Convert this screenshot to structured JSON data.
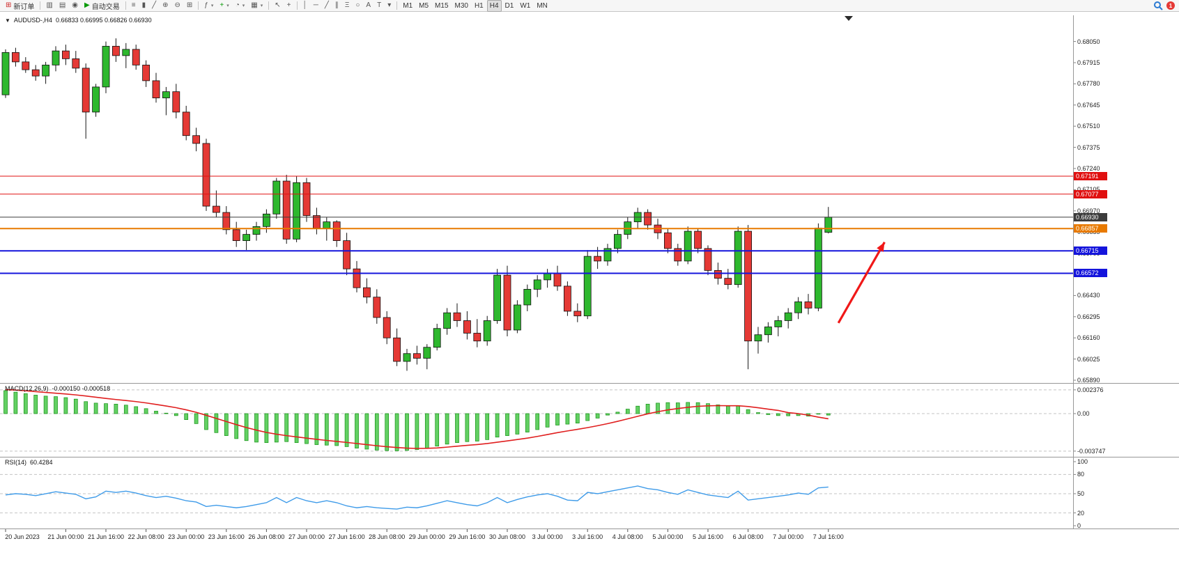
{
  "toolbar": {
    "new_order_label": "新订单",
    "auto_trading_label": "自动交易",
    "timeframes": [
      "M1",
      "M5",
      "M15",
      "M30",
      "H1",
      "H4",
      "D1",
      "W1",
      "MN"
    ],
    "active_timeframe": "H4",
    "notification_count": "1",
    "icons": {
      "new_order": "⊞",
      "new_chart": "▥",
      "profiles": "▤",
      "sound": "◉",
      "auto_play": "▶",
      "bars": "≡",
      "candles": "▮",
      "line_chart": "╱",
      "zoom_in": "⊕",
      "zoom_out": "⊖",
      "tile_windows": "⊞",
      "indicators": "ƒ",
      "add_indicator": "+",
      "period": "◔",
      "templates": "▦",
      "cursor": "↖",
      "crosshair": "+",
      "vertical_line": "│",
      "horizontal_line": "─",
      "trendline": "╱",
      "channel": "∥",
      "fibonacci": "Ξ",
      "shapes": "○",
      "text": "A",
      "text_label": "T",
      "arrows_dropdown": "▾"
    }
  },
  "chart": {
    "title": "AUDUSD-,H4",
    "ohlc_text": "0.66833 0.66995 0.66826 0.66930",
    "collapse_icon": "▼"
  },
  "indicators": {
    "macd": {
      "name": "MACD(12,26,9)",
      "values": "-0.000150 -0.000518"
    },
    "rsi": {
      "name": "RSI(14)",
      "value": "60.4284"
    }
  },
  "chart_data": {
    "type": "candlestick",
    "symbol": "AUDUSD-",
    "timeframe": "H4",
    "last_ohlc": {
      "open": 0.66833,
      "high": 0.66995,
      "low": 0.66826,
      "close": 0.6693
    },
    "price_range_visible": [
      0.65877,
      0.68217
    ],
    "colors": {
      "bull": "#2eb82e",
      "bear": "#e53935",
      "wick": "#151515",
      "macd_hist": "#63d063",
      "macd_hist_edge": "#149114",
      "macd_signal": "#e01f1f",
      "rsi_line": "#3e9be9"
    },
    "price_gridlines": [
      "0.68050",
      "0.67915",
      "0.67780",
      "0.67645",
      "0.67510",
      "0.67375",
      "0.67240",
      "0.67105",
      "0.66970",
      "0.66835",
      "0.66700",
      "0.66565",
      "0.66430",
      "0.66295",
      "0.66160",
      "0.66025",
      "0.65890"
    ],
    "horizontal_lines": [
      {
        "price": 0.67191,
        "label": "0.67191",
        "color": "#e01010",
        "width": 1
      },
      {
        "price": 0.67077,
        "label": "0.67077",
        "color": "#e01010",
        "width": 1
      },
      {
        "price": 0.6693,
        "label": "0.66930",
        "color": "#3c3c3c",
        "width": 1
      },
      {
        "price": 0.66857,
        "label": "0.66857",
        "color": "#e87a00",
        "width": 2
      },
      {
        "price": 0.66715,
        "label": "0.66715",
        "color": "#1414dc",
        "width": 2
      },
      {
        "price": 0.66572,
        "label": "0.66572",
        "color": "#1414dc",
        "width": 2
      }
    ],
    "time_labels": [
      {
        "label": "20 Jun 2023",
        "index": 0
      },
      {
        "label": "21 Jun 00:00",
        "index": 6
      },
      {
        "label": "21 Jun 16:00",
        "index": 10
      },
      {
        "label": "22 Jun 08:00",
        "index": 14
      },
      {
        "label": "23 Jun 00:00",
        "index": 18
      },
      {
        "label": "23 Jun 16:00",
        "index": 22
      },
      {
        "label": "26 Jun 08:00",
        "index": 26
      },
      {
        "label": "27 Jun 00:00",
        "index": 30
      },
      {
        "label": "27 Jun 16:00",
        "index": 34
      },
      {
        "label": "28 Jun 08:00",
        "index": 38
      },
      {
        "label": "29 Jun 00:00",
        "index": 42
      },
      {
        "label": "29 Jun 16:00",
        "index": 46
      },
      {
        "label": "30 Jun 08:00",
        "index": 50
      },
      {
        "label": "3 Jul 00:00",
        "index": 54
      },
      {
        "label": "3 Jul 16:00",
        "index": 58
      },
      {
        "label": "4 Jul 08:00",
        "index": 62
      },
      {
        "label": "5 Jul 00:00",
        "index": 66
      },
      {
        "label": "5 Jul 16:00",
        "index": 70
      },
      {
        "label": "6 Jul 08:00",
        "index": 74
      },
      {
        "label": "7 Jul 00:00",
        "index": 78
      },
      {
        "label": "7 Jul 16:00",
        "index": 82
      }
    ],
    "candles": [
      [
        0.6771,
        0.68,
        0.6769,
        0.6798
      ],
      [
        0.6798,
        0.6801,
        0.6789,
        0.6792
      ],
      [
        0.6792,
        0.6795,
        0.6785,
        0.6787
      ],
      [
        0.6787,
        0.679,
        0.678,
        0.6783
      ],
      [
        0.6783,
        0.6792,
        0.6778,
        0.679
      ],
      [
        0.679,
        0.6802,
        0.6786,
        0.6799
      ],
      [
        0.6799,
        0.6803,
        0.679,
        0.6794
      ],
      [
        0.6794,
        0.6799,
        0.6785,
        0.6788
      ],
      [
        0.6788,
        0.6791,
        0.6743,
        0.676
      ],
      [
        0.676,
        0.6778,
        0.6757,
        0.6776
      ],
      [
        0.6776,
        0.6805,
        0.6772,
        0.6802
      ],
      [
        0.6802,
        0.6807,
        0.6792,
        0.6796
      ],
      [
        0.6796,
        0.6804,
        0.6788,
        0.68
      ],
      [
        0.68,
        0.6803,
        0.6787,
        0.679
      ],
      [
        0.679,
        0.6793,
        0.6776,
        0.678
      ],
      [
        0.678,
        0.6785,
        0.6766,
        0.6769
      ],
      [
        0.6769,
        0.6776,
        0.6758,
        0.6773
      ],
      [
        0.6773,
        0.6778,
        0.6756,
        0.676
      ],
      [
        0.676,
        0.6764,
        0.6742,
        0.6745
      ],
      [
        0.6745,
        0.675,
        0.6735,
        0.674
      ],
      [
        0.674,
        0.6743,
        0.6697,
        0.67
      ],
      [
        0.67,
        0.671,
        0.6693,
        0.6696
      ],
      [
        0.6696,
        0.67,
        0.6682,
        0.6685
      ],
      [
        0.6685,
        0.669,
        0.6674,
        0.6678
      ],
      [
        0.6678,
        0.6685,
        0.6672,
        0.6682
      ],
      [
        0.6682,
        0.669,
        0.6678,
        0.6687
      ],
      [
        0.6687,
        0.6698,
        0.6683,
        0.6695
      ],
      [
        0.6695,
        0.6718,
        0.6692,
        0.6716
      ],
      [
        0.6716,
        0.672,
        0.6676,
        0.6679
      ],
      [
        0.6679,
        0.6719,
        0.6677,
        0.6715
      ],
      [
        0.6715,
        0.6718,
        0.669,
        0.6694
      ],
      [
        0.6694,
        0.6699,
        0.6682,
        0.6686
      ],
      [
        0.6686,
        0.6693,
        0.6678,
        0.669
      ],
      [
        0.669,
        0.6691,
        0.6674,
        0.6678
      ],
      [
        0.6678,
        0.6683,
        0.6656,
        0.666
      ],
      [
        0.666,
        0.6665,
        0.6645,
        0.6648
      ],
      [
        0.6648,
        0.6654,
        0.6638,
        0.6642
      ],
      [
        0.6642,
        0.6647,
        0.6625,
        0.6629
      ],
      [
        0.6629,
        0.6633,
        0.6612,
        0.6616
      ],
      [
        0.6616,
        0.6622,
        0.6598,
        0.6601
      ],
      [
        0.6601,
        0.6609,
        0.6595,
        0.6606
      ],
      [
        0.6606,
        0.6611,
        0.6599,
        0.6603
      ],
      [
        0.6603,
        0.6612,
        0.6596,
        0.661
      ],
      [
        0.661,
        0.6625,
        0.6608,
        0.6622
      ],
      [
        0.6622,
        0.6635,
        0.6618,
        0.6632
      ],
      [
        0.6632,
        0.6638,
        0.6623,
        0.6627
      ],
      [
        0.6627,
        0.6633,
        0.6615,
        0.6619
      ],
      [
        0.6619,
        0.6628,
        0.661,
        0.6614
      ],
      [
        0.6614,
        0.663,
        0.6611,
        0.6627
      ],
      [
        0.6627,
        0.666,
        0.6625,
        0.6656
      ],
      [
        0.6656,
        0.6662,
        0.6617,
        0.6621
      ],
      [
        0.6621,
        0.664,
        0.6619,
        0.6637
      ],
      [
        0.6637,
        0.665,
        0.6633,
        0.6647
      ],
      [
        0.6647,
        0.6656,
        0.6642,
        0.6653
      ],
      [
        0.6653,
        0.666,
        0.6648,
        0.6657
      ],
      [
        0.6657,
        0.6662,
        0.6646,
        0.6649
      ],
      [
        0.6649,
        0.6652,
        0.663,
        0.6633
      ],
      [
        0.6633,
        0.6638,
        0.6626,
        0.663
      ],
      [
        0.663,
        0.6672,
        0.6628,
        0.6668
      ],
      [
        0.6668,
        0.6674,
        0.666,
        0.6665
      ],
      [
        0.6665,
        0.6676,
        0.6662,
        0.6673
      ],
      [
        0.6673,
        0.6685,
        0.667,
        0.6682
      ],
      [
        0.6682,
        0.6693,
        0.6679,
        0.669
      ],
      [
        0.669,
        0.6699,
        0.6686,
        0.6696
      ],
      [
        0.6696,
        0.6698,
        0.6685,
        0.6688
      ],
      [
        0.6688,
        0.6692,
        0.6679,
        0.6683
      ],
      [
        0.6683,
        0.6686,
        0.667,
        0.6673
      ],
      [
        0.6673,
        0.6676,
        0.6662,
        0.6665
      ],
      [
        0.6665,
        0.6687,
        0.6663,
        0.6684
      ],
      [
        0.6684,
        0.6686,
        0.667,
        0.6673
      ],
      [
        0.6673,
        0.6675,
        0.6656,
        0.6659
      ],
      [
        0.6659,
        0.6664,
        0.665,
        0.6654
      ],
      [
        0.6654,
        0.666,
        0.6647,
        0.665
      ],
      [
        0.665,
        0.6687,
        0.6648,
        0.6684
      ],
      [
        0.6684,
        0.6688,
        0.6596,
        0.6614
      ],
      [
        0.6614,
        0.6623,
        0.6606,
        0.6618
      ],
      [
        0.6618,
        0.6626,
        0.6613,
        0.6623
      ],
      [
        0.6623,
        0.663,
        0.6617,
        0.6627
      ],
      [
        0.6627,
        0.6635,
        0.6622,
        0.6632
      ],
      [
        0.6632,
        0.6642,
        0.6628,
        0.6639
      ],
      [
        0.6639,
        0.6644,
        0.6631,
        0.6635
      ],
      [
        0.6635,
        0.6689,
        0.6633,
        0.6686
      ],
      [
        0.66833,
        0.66995,
        0.66826,
        0.6693
      ]
    ],
    "macd": {
      "axis_levels": [
        0.002376,
        0,
        -0.003747
      ],
      "axis_labels": [
        "0.002376",
        "0.00",
        "-0.003747"
      ],
      "histogram": [
        0.0023,
        0.00215,
        0.002,
        0.00185,
        0.00175,
        0.0017,
        0.0016,
        0.00145,
        0.0012,
        0.00105,
        0.001,
        0.00095,
        0.00085,
        0.0007,
        0.0005,
        0.00025,
        5e-05,
        -0.0002,
        -0.0006,
        -0.001,
        -0.0016,
        -0.0019,
        -0.0022,
        -0.0025,
        -0.0027,
        -0.00285,
        -0.0029,
        -0.00285,
        -0.0028,
        -0.0029,
        -0.003,
        -0.0031,
        -0.00315,
        -0.0032,
        -0.0033,
        -0.00345,
        -0.00355,
        -0.00365,
        -0.0037,
        -0.00372,
        -0.00368,
        -0.0036,
        -0.00345,
        -0.00325,
        -0.00305,
        -0.0029,
        -0.0028,
        -0.00275,
        -0.0026,
        -0.00235,
        -0.0022,
        -0.00205,
        -0.00185,
        -0.0016,
        -0.00135,
        -0.00115,
        -0.00105,
        -0.00095,
        -0.0007,
        -0.00045,
        -0.00015,
        0.00015,
        0.00045,
        0.00075,
        0.00095,
        0.00105,
        0.0011,
        0.00108,
        0.00112,
        0.0011,
        0.001,
        0.00088,
        0.00075,
        0.0008,
        0.0004,
        0.0001,
        -0.0001,
        -0.0002,
        -0.00022,
        -0.0002,
        -0.00025,
        -5e-05,
        -0.00015
      ],
      "signal": [
        0.0024,
        0.00235,
        0.00228,
        0.0022,
        0.00212,
        0.00204,
        0.00196,
        0.00187,
        0.00176,
        0.00164,
        0.00152,
        0.00141,
        0.00131,
        0.0012,
        0.00107,
        0.00092,
        0.00076,
        0.00059,
        0.00038,
        0.00013,
        -0.00017,
        -0.00048,
        -0.00079,
        -0.0011,
        -0.00139,
        -0.00165,
        -0.00188,
        -0.00206,
        -0.0022,
        -0.00233,
        -0.00245,
        -0.00257,
        -0.00268,
        -0.00278,
        -0.00288,
        -0.00299,
        -0.0031,
        -0.00321,
        -0.00331,
        -0.00339,
        -0.00345,
        -0.00348,
        -0.00347,
        -0.00343,
        -0.00335,
        -0.00326,
        -0.00317,
        -0.00309,
        -0.00299,
        -0.00286,
        -0.00273,
        -0.00259,
        -0.00245,
        -0.00228,
        -0.00209,
        -0.0019,
        -0.00173,
        -0.00157,
        -0.0014,
        -0.00121,
        -0.001,
        -0.00077,
        -0.00052,
        -0.00027,
        -2e-05,
        0.00019,
        0.00037,
        0.00051,
        0.00063,
        0.00073,
        0.00078,
        0.0008,
        0.00079,
        0.00079,
        0.00071,
        0.00059,
        0.00045,
        0.00032,
        0.0001,
        0.0,
        -0.00015,
        -0.00035,
        -0.00052
      ]
    },
    "rsi": {
      "levels": [
        100,
        80,
        50,
        20,
        0
      ],
      "level_labels": [
        "100",
        "80",
        "50",
        "20",
        "0"
      ],
      "dashed_levels": [
        80,
        50,
        20
      ],
      "values": [
        48,
        50,
        49,
        47,
        50,
        53,
        51,
        49,
        42,
        45,
        54,
        52,
        54,
        51,
        47,
        44,
        46,
        43,
        39,
        37,
        30,
        32,
        30,
        28,
        30,
        33,
        36,
        44,
        36,
        44,
        39,
        36,
        39,
        36,
        31,
        28,
        30,
        28,
        27,
        26,
        29,
        28,
        31,
        35,
        39,
        36,
        33,
        31,
        36,
        44,
        36,
        41,
        45,
        48,
        50,
        46,
        40,
        39,
        52,
        50,
        53,
        56,
        59,
        62,
        58,
        56,
        52,
        49,
        56,
        52,
        48,
        46,
        44,
        54,
        40,
        42,
        44,
        46,
        48,
        51,
        49,
        59,
        60.43
      ]
    },
    "arrow_annotation": {
      "from_index": 83,
      "from_price": 0.66255,
      "to_index": 87.6,
      "to_price": 0.6677,
      "color": "#f01818"
    }
  }
}
